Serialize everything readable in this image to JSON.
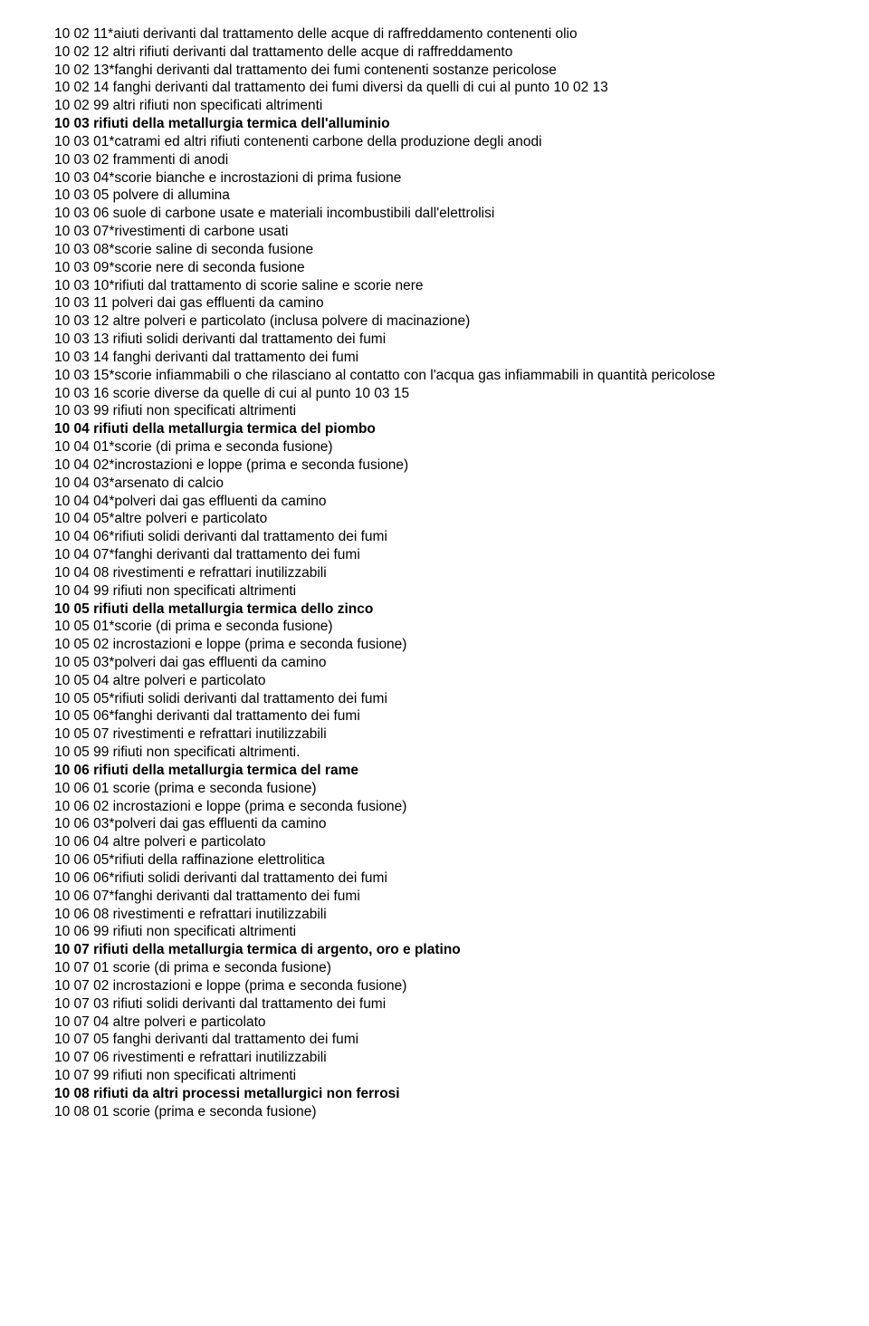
{
  "lines": [
    {
      "cls": "entry",
      "text": "10 02 11*aiuti derivanti dal trattamento delle acque di raffreddamento contenenti olio"
    },
    {
      "cls": "entry",
      "text": "10 02 12 altri rifiuti derivanti dal trattamento delle acque di raffreddamento"
    },
    {
      "cls": "entry",
      "text": "10 02 13*fanghi derivanti dal trattamento dei fumi contenenti sostanze pericolose"
    },
    {
      "cls": "entry",
      "text": "10 02 14 fanghi derivanti dal trattamento dei fumi diversi da quelli di cui al punto 10 02 13"
    },
    {
      "cls": "entry",
      "text": "10 02 99 altri rifiuti non specificati altrimenti"
    },
    {
      "cls": "header",
      "text": "10 03 rifiuti della metallurgia termica dell'alluminio"
    },
    {
      "cls": "entry",
      "text": "10 03 01*catrami ed altri rifiuti contenenti carbone della produzione degli anodi"
    },
    {
      "cls": "entry",
      "text": "10 03 02 frammenti di anodi"
    },
    {
      "cls": "entry",
      "text": "10 03 04*scorie bianche e incrostazioni di prima fusione"
    },
    {
      "cls": "entry",
      "text": "10 03 05 polvere di allumina"
    },
    {
      "cls": "entry",
      "text": "10 03 06 suole di carbone usate e materiali incombustibili dall'elettrolisi"
    },
    {
      "cls": "entry",
      "text": "10 03 07*rivestimenti di carbone usati"
    },
    {
      "cls": "entry",
      "text": "10 03 08*scorie saline di seconda fusione"
    },
    {
      "cls": "entry",
      "text": "10 03 09*scorie nere di seconda fusione"
    },
    {
      "cls": "entry",
      "text": "10 03 10*rifiuti dal trattamento di scorie saline e scorie nere"
    },
    {
      "cls": "entry",
      "text": "10 03 11 polveri dai gas effluenti da camino"
    },
    {
      "cls": "entry",
      "text": "10 03 12 altre polveri e particolato (inclusa polvere di macinazione)"
    },
    {
      "cls": "entry",
      "text": "10 03 13 rifiuti solidi derivanti dal trattamento dei fumi"
    },
    {
      "cls": "entry",
      "text": "10 03 14 fanghi derivanti dal trattamento dei fumi"
    },
    {
      "cls": "entry",
      "text": "10 03 15*scorie infiammabili o che rilasciano al contatto con l'acqua gas infiammabili in quantità pericolose"
    },
    {
      "cls": "entry",
      "text": "10 03 16 scorie diverse da quelle di cui al punto 10 03 15"
    },
    {
      "cls": "entry",
      "text": "10 03 99 rifiuti non specificati altrimenti"
    },
    {
      "cls": "header",
      "text": "10 04 rifiuti della metallurgia termica del piombo"
    },
    {
      "cls": "entry",
      "text": "10 04 01*scorie (di prima e seconda fusione)"
    },
    {
      "cls": "entry",
      "text": "10 04 02*incrostazioni e loppe (prima e seconda fusione)"
    },
    {
      "cls": "entry",
      "text": "10 04 03*arsenato di calcio"
    },
    {
      "cls": "entry",
      "text": "10 04 04*polveri dai gas effluenti da camino"
    },
    {
      "cls": "entry",
      "text": "10 04 05*altre polveri e particolato"
    },
    {
      "cls": "entry",
      "text": "10 04 06*rifiuti solidi derivanti dal trattamento dei fumi"
    },
    {
      "cls": "entry",
      "text": "10 04 07*fanghi derivanti dal trattamento dei fumi"
    },
    {
      "cls": "entry",
      "text": "10 04 08 rivestimenti e refrattari inutilizzabili"
    },
    {
      "cls": "entry",
      "text": "10 04 99 rifiuti non specificati altrimenti"
    },
    {
      "cls": "header",
      "text": "10 05 rifiuti della metallurgia termica dello zinco"
    },
    {
      "cls": "entry",
      "text": "10 05 01*scorie (di prima e seconda fusione)"
    },
    {
      "cls": "entry",
      "text": "10 05 02 incrostazioni e loppe (prima e seconda fusione)"
    },
    {
      "cls": "entry",
      "text": "10 05 03*polveri dai gas effluenti da camino"
    },
    {
      "cls": "entry",
      "text": "10 05 04 altre polveri e particolato"
    },
    {
      "cls": "entry",
      "text": "10 05 05*rifiuti solidi derivanti dal trattamento dei fumi"
    },
    {
      "cls": "entry",
      "text": "10 05 06*fanghi derivanti dal trattamento dei fumi"
    },
    {
      "cls": "entry",
      "text": "10 05 07 rivestimenti e refrattari inutilizzabili"
    },
    {
      "cls": "entry",
      "text": "10 05 99 rifiuti non specificati altrimenti."
    },
    {
      "cls": "header",
      "text": "10 06 rifiuti della metallurgia termica del rame"
    },
    {
      "cls": "entry",
      "text": "10 06 01 scorie (prima e seconda fusione)"
    },
    {
      "cls": "entry",
      "text": "10 06 02 incrostazioni e loppe (prima e seconda fusione)"
    },
    {
      "cls": "entry",
      "text": "10 06 03*polveri dai gas effluenti da camino"
    },
    {
      "cls": "entry",
      "text": "10 06 04 altre polveri e particolato"
    },
    {
      "cls": "entry",
      "text": "10 06 05*rifiuti della raffinazione elettrolitica"
    },
    {
      "cls": "entry",
      "text": "10 06 06*rifiuti solidi derivanti dal trattamento dei fumi"
    },
    {
      "cls": "entry",
      "text": "10 06 07*fanghi derivanti dal trattamento dei fumi"
    },
    {
      "cls": "entry",
      "text": "10 06 08 rivestimenti e refrattari inutilizzabili"
    },
    {
      "cls": "entry",
      "text": "10 06 99 rifiuti non specificati altrimenti"
    },
    {
      "cls": "header",
      "text": "10 07 rifiuti della metallurgia termica di argento, oro e platino"
    },
    {
      "cls": "entry",
      "text": "10 07 01 scorie (di prima e seconda fusione)"
    },
    {
      "cls": "entry",
      "text": "10 07 02 incrostazioni e loppe (prima e seconda fusione)"
    },
    {
      "cls": "entry",
      "text": "10 07 03 rifiuti solidi derivanti dal trattamento dei fumi"
    },
    {
      "cls": "entry",
      "text": "10 07 04 altre polveri e particolato"
    },
    {
      "cls": "entry",
      "text": "10 07 05 fanghi derivanti dal trattamento dei fumi"
    },
    {
      "cls": "entry",
      "text": "10 07 06 rivestimenti e refrattari inutilizzabili"
    },
    {
      "cls": "entry",
      "text": "10 07 99 rifiuti non specificati altrimenti"
    },
    {
      "cls": "header",
      "text": "10 08 rifiuti da altri processi metallurgici non ferrosi"
    },
    {
      "cls": "entry",
      "text": "10 08 01 scorie (prima e seconda fusione)"
    }
  ]
}
